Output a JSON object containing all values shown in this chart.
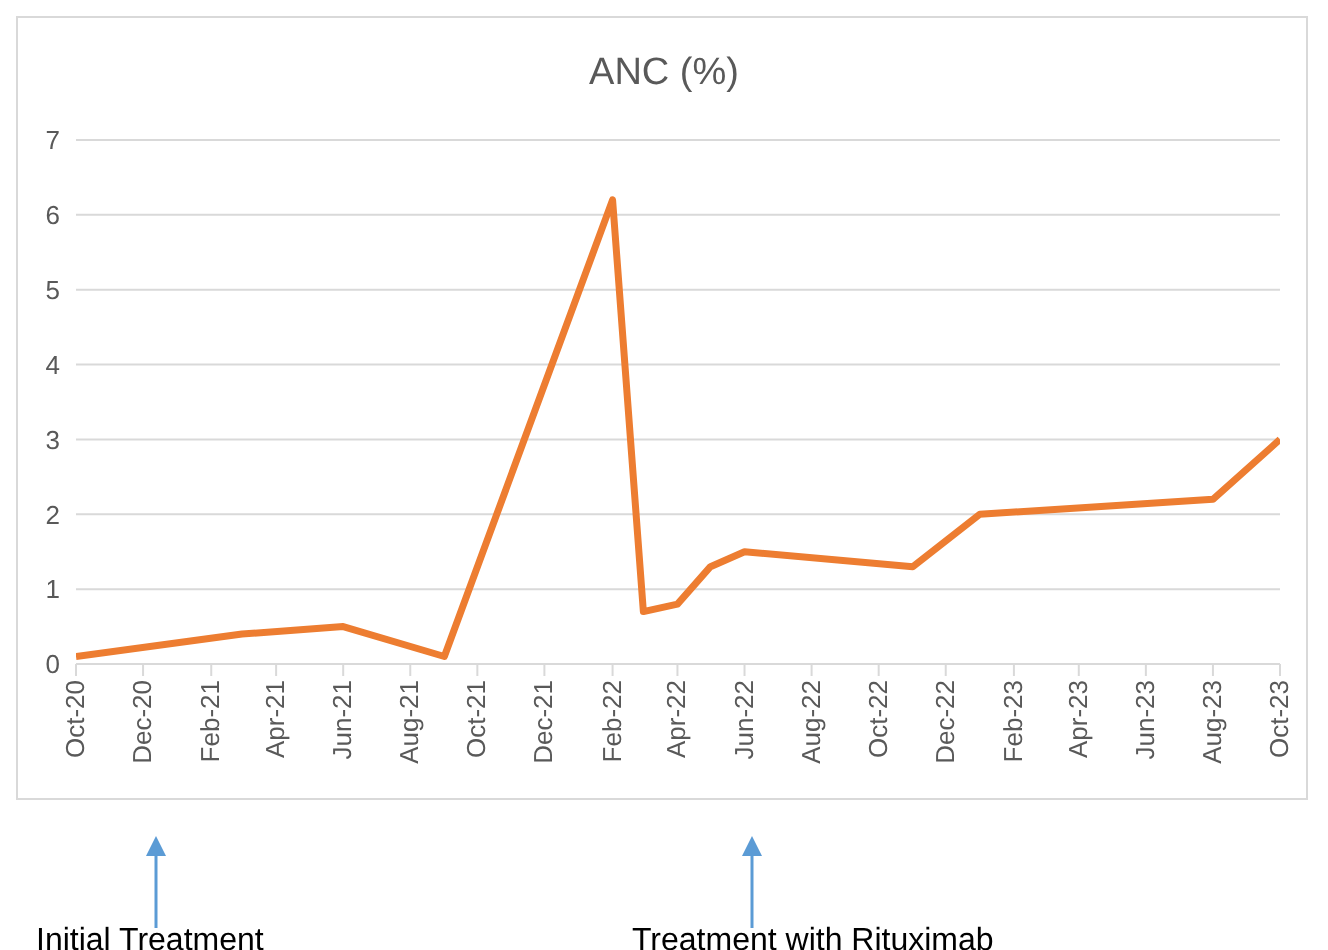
{
  "chart_data": {
    "type": "line",
    "title": "ANC (%)",
    "x": [
      "2020-10",
      "2021-03",
      "2021-06",
      "2021-09",
      "2022-02",
      "2022-03",
      "2022-04",
      "2022-05",
      "2022-06",
      "2022-11",
      "2023-01",
      "2023-08",
      "2023-10"
    ],
    "series": [
      {
        "color": "#ed7d31",
        "values": [
          0.1,
          0.4,
          0.5,
          0.1,
          6.2,
          0.7,
          0.8,
          1.3,
          1.5,
          1.3,
          2.0,
          2.2,
          3.0
        ]
      }
    ],
    "xlim": [
      "2020-10",
      "2023-10"
    ],
    "xticks": [
      {
        "value": "2020-10",
        "label": "Oct-20"
      },
      {
        "value": "2020-12",
        "label": "Dec-20"
      },
      {
        "value": "2021-02",
        "label": "Feb-21"
      },
      {
        "value": "2021-04",
        "label": "Apr-21"
      },
      {
        "value": "2021-06",
        "label": "Jun-21"
      },
      {
        "value": "2021-08",
        "label": "Aug-21"
      },
      {
        "value": "2021-10",
        "label": "Oct-21"
      },
      {
        "value": "2021-12",
        "label": "Dec-21"
      },
      {
        "value": "2022-02",
        "label": "Feb-22"
      },
      {
        "value": "2022-04",
        "label": "Apr-22"
      },
      {
        "value": "2022-06",
        "label": "Jun-22"
      },
      {
        "value": "2022-08",
        "label": "Aug-22"
      },
      {
        "value": "2022-10",
        "label": "Oct-22"
      },
      {
        "value": "2022-12",
        "label": "Dec-22"
      },
      {
        "value": "2023-02",
        "label": "Feb-23"
      },
      {
        "value": "2023-04",
        "label": "Apr-23"
      },
      {
        "value": "2023-06",
        "label": "Jun-23"
      },
      {
        "value": "2023-08",
        "label": "Aug-23"
      },
      {
        "value": "2023-10",
        "label": "Oct-23"
      }
    ],
    "ylim": [
      0,
      7
    ],
    "yticks": [
      0,
      1,
      2,
      3,
      4,
      5,
      6,
      7
    ],
    "grid": "y",
    "legend": false,
    "marker": "none",
    "line_style": "solid",
    "annotations": [
      "Initial Treatment",
      "Treatment with Rituximab"
    ]
  }
}
